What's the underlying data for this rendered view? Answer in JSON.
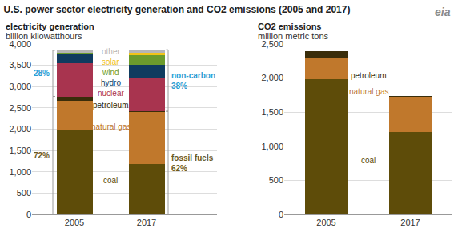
{
  "title": "U.S. power sector electricity generation and CO2 emissions (2005 and 2017)",
  "logo": "eia",
  "chart_data": [
    {
      "type": "bar",
      "stacked": true,
      "grid": true,
      "title": "electricity generation",
      "subtitle": "billion kilowatthours",
      "categories": [
        "2005",
        "2017"
      ],
      "series": [
        {
          "name": "coal",
          "color": "#5e4c09",
          "values": [
            1990,
            1185
          ]
        },
        {
          "name": "natural gas",
          "color": "#c0782c",
          "values": [
            680,
            1215
          ]
        },
        {
          "name": "petroleum",
          "color": "#3a2d0a",
          "values": [
            100,
            20
          ]
        },
        {
          "name": "nuclear",
          "color": "#a8344f",
          "values": [
            780,
            790
          ]
        },
        {
          "name": "hydro",
          "color": "#0f3b5f",
          "values": [
            230,
            295
          ]
        },
        {
          "name": "wind",
          "color": "#6b9b2c",
          "values": [
            20,
            230
          ]
        },
        {
          "name": "solar",
          "color": "#f2c318",
          "values": [
            1,
            65
          ]
        },
        {
          "name": "other",
          "color": "#b5b5b5",
          "values": [
            50,
            65
          ]
        }
      ],
      "ylim": [
        0,
        4000
      ],
      "yticks": [
        0,
        500,
        {
          "value": 1000,
          "label": "1,000"
        },
        {
          "value": 1500,
          "label": "1,500"
        },
        {
          "value": 2000,
          "label": "2,000"
        },
        {
          "value": 2500,
          "label": "2,500"
        },
        {
          "value": 3000,
          "label": "3,000"
        },
        {
          "value": 3500,
          "label": "3,500"
        },
        {
          "value": 4000,
          "label": "4,000"
        }
      ],
      "annotations": [
        {
          "text": "28%",
          "category": "2005",
          "color": "#2a9fd6",
          "series": [
            "nuclear",
            "hydro",
            "wind",
            "solar",
            "other"
          ]
        },
        {
          "text": "72%",
          "category": "2005",
          "color": "#6b5a1e",
          "series": [
            "coal",
            "natural gas",
            "petroleum"
          ]
        },
        {
          "text": "non-carbon\n38%",
          "category": "2017",
          "color": "#2a9fd6",
          "series": [
            "nuclear",
            "hydro",
            "wind",
            "solar",
            "other"
          ]
        },
        {
          "text": "fossil fuels\n62%",
          "category": "2017",
          "color": "#6b5a1e",
          "series": [
            "coal",
            "natural gas",
            "petroleum"
          ]
        }
      ]
    },
    {
      "type": "bar",
      "stacked": true,
      "grid": true,
      "title": "CO2 emissions",
      "subtitle": "million metric tons",
      "categories": [
        "2005",
        "2017"
      ],
      "series": [
        {
          "name": "coal",
          "color": "#5e4c09",
          "values": [
            1985,
            1205
          ]
        },
        {
          "name": "natural gas",
          "color": "#c0782c",
          "values": [
            320,
            515
          ]
        },
        {
          "name": "petroleum",
          "color": "#3a2d0a",
          "values": [
            95,
            15
          ]
        }
      ],
      "ylim": [
        0,
        2500
      ],
      "yticks": [
        0,
        500,
        {
          "value": 1000,
          "label": "1,000"
        },
        {
          "value": 1500,
          "label": "1,500"
        },
        {
          "value": 2000,
          "label": "2,000"
        },
        {
          "value": 2500,
          "label": "2,500"
        }
      ]
    }
  ]
}
